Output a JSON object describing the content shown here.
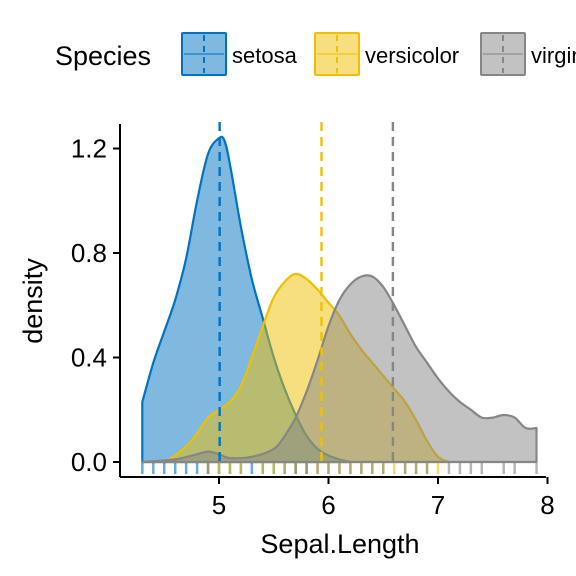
{
  "chart_data": {
    "type": "area",
    "title": "",
    "xlabel": "Sepal.Length",
    "ylabel": "density",
    "xlim": [
      4.0,
      8.0
    ],
    "ylim": [
      0.0,
      1.3
    ],
    "x_ticks": [
      5,
      6,
      7,
      8
    ],
    "y_ticks": [
      0.0,
      0.4,
      0.8,
      1.2
    ],
    "y_tick_labels": [
      "0.0",
      "0.4",
      "0.8",
      "1.2"
    ],
    "grid": false,
    "legend": {
      "title": "Species",
      "placement": "top",
      "entries": [
        "setosa",
        "versicolor",
        "virginica"
      ]
    },
    "series": [
      {
        "name": "setosa",
        "color": "#0073C2",
        "mean": 5.006,
        "x": [
          4.3,
          4.4,
          4.5,
          4.6,
          4.7,
          4.8,
          4.9,
          5.0,
          5.05,
          5.1,
          5.2,
          5.3,
          5.4,
          5.5,
          5.6,
          5.7,
          5.8,
          5.9,
          6.0,
          6.1,
          6.2
        ],
        "values": [
          0.23,
          0.38,
          0.5,
          0.62,
          0.78,
          1.0,
          1.18,
          1.24,
          1.23,
          1.14,
          0.9,
          0.7,
          0.55,
          0.4,
          0.28,
          0.18,
          0.1,
          0.05,
          0.025,
          0.01,
          0.0
        ]
      },
      {
        "name": "versicolor",
        "color": "#EFC000",
        "mean": 5.936,
        "x": [
          4.3,
          4.5,
          4.7,
          4.8,
          4.9,
          5.0,
          5.1,
          5.2,
          5.3,
          5.4,
          5.5,
          5.6,
          5.7,
          5.8,
          5.9,
          6.0,
          6.1,
          6.2,
          6.3,
          6.4,
          6.5,
          6.6,
          6.7,
          6.8,
          6.9,
          7.0,
          7.1
        ],
        "values": [
          0.0,
          0.0,
          0.06,
          0.11,
          0.17,
          0.2,
          0.23,
          0.29,
          0.4,
          0.52,
          0.63,
          0.69,
          0.72,
          0.7,
          0.66,
          0.61,
          0.56,
          0.49,
          0.43,
          0.38,
          0.33,
          0.28,
          0.23,
          0.16,
          0.08,
          0.02,
          0.0
        ]
      },
      {
        "name": "virginica",
        "color": "#868686",
        "mean": 6.588,
        "x": [
          4.3,
          4.6,
          4.8,
          4.9,
          5.0,
          5.1,
          5.3,
          5.5,
          5.6,
          5.7,
          5.8,
          5.9,
          6.0,
          6.1,
          6.2,
          6.3,
          6.4,
          6.5,
          6.6,
          6.7,
          6.8,
          6.9,
          7.0,
          7.1,
          7.2,
          7.3,
          7.4,
          7.5,
          7.6,
          7.7,
          7.8,
          7.9
        ],
        "values": [
          0.0,
          0.01,
          0.03,
          0.04,
          0.03,
          0.015,
          0.02,
          0.05,
          0.1,
          0.17,
          0.27,
          0.39,
          0.52,
          0.62,
          0.68,
          0.71,
          0.71,
          0.67,
          0.6,
          0.52,
          0.44,
          0.38,
          0.32,
          0.27,
          0.23,
          0.2,
          0.17,
          0.17,
          0.18,
          0.17,
          0.13,
          0.13
        ]
      }
    ],
    "rug": {
      "setosa": [
        4.3,
        4.4,
        4.5,
        4.6,
        4.7,
        4.8,
        4.9,
        5.0,
        5.1,
        5.2,
        5.3,
        5.4,
        5.5,
        5.7,
        5.8
      ],
      "versicolor": [
        4.9,
        5.0,
        5.1,
        5.2,
        5.4,
        5.5,
        5.6,
        5.7,
        5.8,
        5.9,
        6.0,
        6.1,
        6.2,
        6.3,
        6.4,
        6.5,
        6.6,
        6.7,
        6.8,
        6.9,
        7.0
      ],
      "virginica": [
        4.9,
        5.6,
        5.7,
        5.8,
        5.9,
        6.0,
        6.1,
        6.2,
        6.3,
        6.4,
        6.5,
        6.7,
        6.8,
        6.9,
        7.1,
        7.2,
        7.3,
        7.4,
        7.6,
        7.7,
        7.9
      ]
    }
  }
}
